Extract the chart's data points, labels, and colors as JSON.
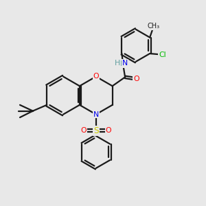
{
  "bg_color": "#e8e8e8",
  "bond_color": "#1a1a1a",
  "O_color": "#ff0000",
  "N_color": "#0000ee",
  "S_color": "#cccc00",
  "Cl_color": "#00bb00",
  "H_color": "#5f9ea0",
  "line_width": 1.6,
  "figsize": [
    3.0,
    3.0
  ],
  "dpi": 100,
  "xlim": [
    0.3,
    9.7
  ],
  "ylim": [
    0.5,
    9.5
  ]
}
